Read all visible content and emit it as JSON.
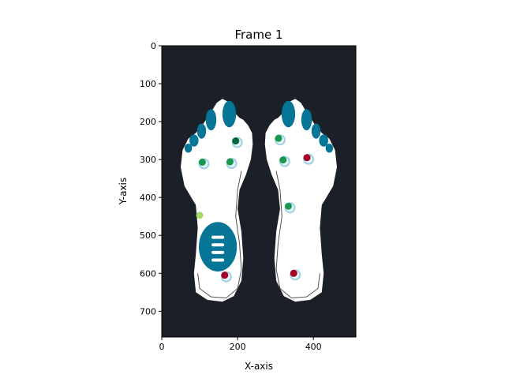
{
  "chart_data": {
    "type": "scatter",
    "title": "Frame 1",
    "xlabel": "X-axis",
    "ylabel": "Y-axis",
    "xlim": [
      0,
      512
    ],
    "ylim": [
      768,
      0
    ],
    "xticks": [
      0,
      200,
      400
    ],
    "yticks": [
      0,
      100,
      200,
      300,
      400,
      500,
      600,
      700
    ],
    "background_color": "#1b1f27",
    "insole_color": "#ffffff",
    "pattern_color": "#077595",
    "points": [
      {
        "x": 195,
        "y": 251,
        "color": "#006837",
        "ring": true
      },
      {
        "x": 107,
        "y": 307,
        "color": "#1a9850",
        "ring": true
      },
      {
        "x": 180,
        "y": 306,
        "color": "#1a9850",
        "ring": true
      },
      {
        "x": 100,
        "y": 447,
        "color": "#a6d96a",
        "ring": false
      },
      {
        "x": 166,
        "y": 605,
        "color": "#a50026",
        "ring": true
      },
      {
        "x": 308,
        "y": 244,
        "color": "#1a9850",
        "ring": true
      },
      {
        "x": 320,
        "y": 301,
        "color": "#1a9850",
        "ring": true
      },
      {
        "x": 383,
        "y": 295,
        "color": "#a50026",
        "ring": true
      },
      {
        "x": 334,
        "y": 423,
        "color": "#1a9850",
        "ring": true
      },
      {
        "x": 348,
        "y": 600,
        "color": "#a50026",
        "ring": true
      }
    ]
  }
}
